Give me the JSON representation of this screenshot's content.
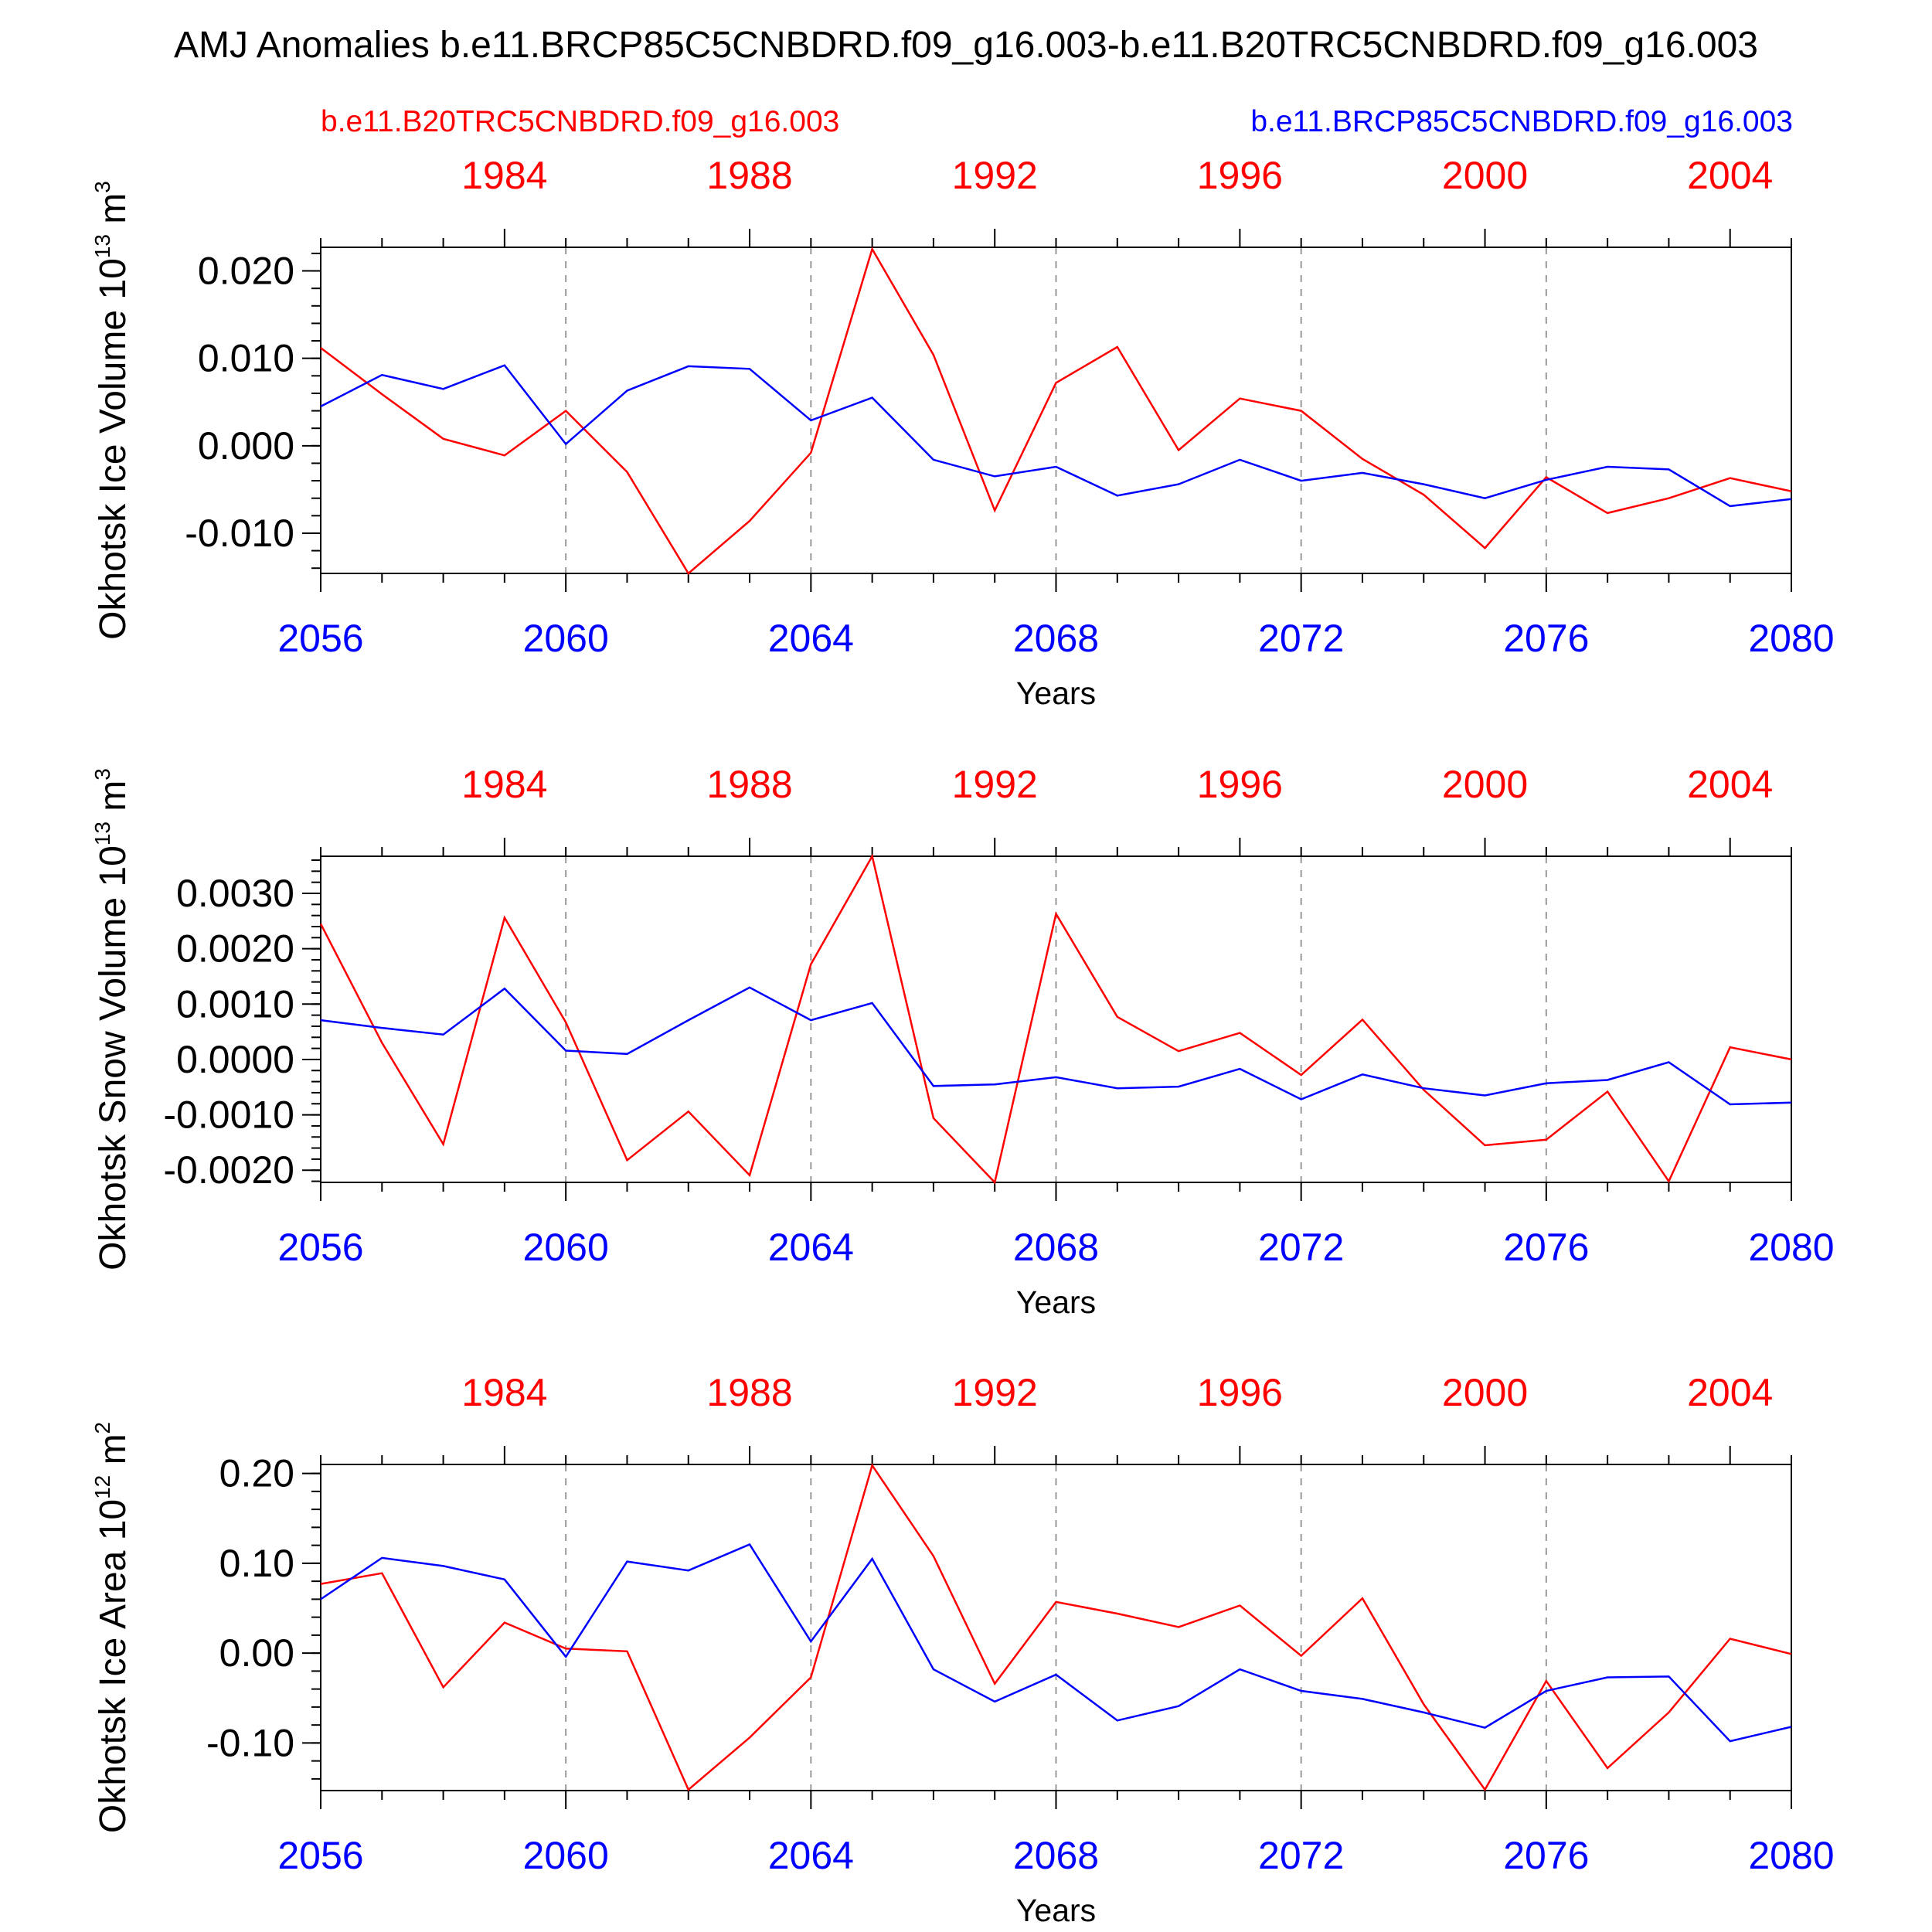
{
  "figure": {
    "title": "AMJ Anomalies b.e11.BRCP85C5CNBDRD.f09_g16.003-b.e11.B20TRC5CNBDRD.f09_g16.003",
    "legend_red": "b.e11.B20TRC5CNBDRD.f09_g16.003",
    "legend_blue": "b.e11.BRCP85C5CNBDRD.f09_g16.003",
    "colors": {
      "red_series": "#ff0000",
      "blue_series": "#0000ff",
      "grid": "#999999"
    }
  },
  "chart_data": [
    {
      "type": "line",
      "ylabel": "Okhotsk Ice Volume",
      "ylabel_unit": "10",
      "ylabel_exp": "13",
      "ylabel_unit_tail": "m",
      "ylabel_unit_exp": "3",
      "xlabel": "Years",
      "ylim": [
        -0.0146,
        0.0227
      ],
      "yticks": [
        0.02,
        0.01,
        0.0,
        -0.01
      ],
      "ytick_labels": [
        "0.020",
        "0.010",
        "0.000",
        "-0.010"
      ],
      "yminor_step": 0.002,
      "x_bottom": [
        2056,
        2057,
        2058,
        2059,
        2060,
        2061,
        2062,
        2063,
        2064,
        2065,
        2066,
        2067,
        2068,
        2069,
        2070,
        2071,
        2072,
        2073,
        2074,
        2075,
        2076,
        2077,
        2078,
        2079,
        2080
      ],
      "bottom_tick_labels": [
        "2056",
        "2060",
        "2064",
        "2068",
        "2072",
        "2076",
        "2080"
      ],
      "top_tick_labels": [
        "1984",
        "1988",
        "1992",
        "1996",
        "2000",
        "2004"
      ],
      "series": [
        {
          "name": "b.e11.B20TRC5CNBDRD.f09_g16.003",
          "color": "#ff0000",
          "values": [
            0.0112,
            0.0059,
            0.0008,
            -0.0011,
            0.004,
            -0.003,
            -0.0146,
            -0.0086,
            -0.0008,
            0.0225,
            0.0104,
            -0.0074,
            0.0072,
            0.0113,
            -0.0005,
            0.0054,
            0.004,
            -0.0015,
            -0.0056,
            -0.0117,
            -0.0036,
            -0.0077,
            -0.006,
            -0.0037,
            -0.0052
          ]
        },
        {
          "name": "b.e11.BRCP85C5CNBDRD.f09_g16.003",
          "color": "#0000ff",
          "values": [
            0.0045,
            0.0081,
            0.0065,
            0.0092,
            0.0002,
            0.0063,
            0.0091,
            0.0088,
            0.0029,
            0.0055,
            -0.0016,
            -0.0035,
            -0.0024,
            -0.0057,
            -0.0044,
            -0.0016,
            -0.004,
            -0.0031,
            -0.0044,
            -0.006,
            -0.0039,
            -0.0024,
            -0.0027,
            -0.0069,
            -0.0061
          ]
        }
      ]
    },
    {
      "type": "line",
      "ylabel": "Okhotsk Snow Volume",
      "ylabel_unit": "10",
      "ylabel_exp": "13",
      "ylabel_unit_tail": "m",
      "ylabel_unit_exp": "3",
      "xlabel": "Years",
      "ylim": [
        -0.00222,
        0.00367
      ],
      "yticks": [
        0.003,
        0.002,
        0.001,
        0.0,
        -0.001,
        -0.002
      ],
      "ytick_labels": [
        "0.0030",
        "0.0020",
        "0.0010",
        "0.0000",
        "-0.0010",
        "-0.0020"
      ],
      "yminor_step": 0.0002,
      "x_bottom": [
        2056,
        2057,
        2058,
        2059,
        2060,
        2061,
        2062,
        2063,
        2064,
        2065,
        2066,
        2067,
        2068,
        2069,
        2070,
        2071,
        2072,
        2073,
        2074,
        2075,
        2076,
        2077,
        2078,
        2079,
        2080
      ],
      "bottom_tick_labels": [
        "2056",
        "2060",
        "2064",
        "2068",
        "2072",
        "2076",
        "2080"
      ],
      "top_tick_labels": [
        "1984",
        "1988",
        "1992",
        "1996",
        "2000",
        "2004"
      ],
      "series": [
        {
          "name": "b.e11.B20TRC5CNBDRD.f09_g16.003",
          "color": "#ff0000",
          "values": [
            0.00245,
            0.0003,
            -0.00153,
            0.00256,
            0.00067,
            -0.00182,
            -0.00094,
            -0.00209,
            0.00172,
            0.00367,
            -0.00106,
            -0.00222,
            0.00263,
            0.00077,
            0.00015,
            0.00048,
            -0.00028,
            0.00072,
            -0.00055,
            -0.00155,
            -0.00145,
            -0.00058,
            -0.0022,
            0.00022,
            0.0
          ]
        },
        {
          "name": "b.e11.BRCP85C5CNBDRD.f09_g16.003",
          "color": "#0000ff",
          "values": [
            0.00071,
            0.00057,
            0.00045,
            0.00128,
            0.00016,
            0.0001,
            0.00071,
            0.0013,
            0.00071,
            0.00102,
            -0.00048,
            -0.00045,
            -0.00032,
            -0.00052,
            -0.00049,
            -0.00017,
            -0.00072,
            -0.00027,
            -0.00052,
            -0.00065,
            -0.00043,
            -0.00037,
            -5e-05,
            -0.00081,
            -0.00078
          ]
        }
      ]
    },
    {
      "type": "line",
      "ylabel": "Okhotsk Ice Area",
      "ylabel_unit": "10",
      "ylabel_exp": "12",
      "ylabel_unit_tail": "m",
      "ylabel_unit_exp": "2",
      "xlabel": "Years",
      "ylim": [
        -0.153,
        0.21
      ],
      "yticks": [
        0.2,
        0.1,
        0.0,
        -0.1
      ],
      "ytick_labels": [
        "0.20",
        "0.10",
        "0.00",
        "-0.10"
      ],
      "yminor_step": 0.02,
      "x_bottom": [
        2056,
        2057,
        2058,
        2059,
        2060,
        2061,
        2062,
        2063,
        2064,
        2065,
        2066,
        2067,
        2068,
        2069,
        2070,
        2071,
        2072,
        2073,
        2074,
        2075,
        2076,
        2077,
        2078,
        2079,
        2080
      ],
      "bottom_tick_labels": [
        "2056",
        "2060",
        "2064",
        "2068",
        "2072",
        "2076",
        "2080"
      ],
      "top_tick_labels": [
        "1984",
        "1988",
        "1992",
        "1996",
        "2000",
        "2004"
      ],
      "series": [
        {
          "name": "b.e11.B20TRC5CNBDRD.f09_g16.003",
          "color": "#ff0000",
          "values": [
            0.077,
            0.089,
            -0.038,
            0.034,
            0.005,
            0.002,
            -0.152,
            -0.094,
            -0.027,
            0.209,
            0.108,
            -0.034,
            0.057,
            0.044,
            0.029,
            0.053,
            -0.003,
            0.061,
            -0.057,
            -0.152,
            -0.031,
            -0.128,
            -0.066,
            0.016,
            -0.001
          ]
        },
        {
          "name": "b.e11.BRCP85C5CNBDRD.f09_g16.003",
          "color": "#0000ff",
          "values": [
            0.06,
            0.106,
            0.097,
            0.082,
            -0.004,
            0.102,
            0.092,
            0.121,
            0.013,
            0.105,
            -0.018,
            -0.054,
            -0.024,
            -0.075,
            -0.059,
            -0.018,
            -0.042,
            -0.051,
            -0.066,
            -0.083,
            -0.042,
            -0.027,
            -0.026,
            -0.098,
            -0.082
          ]
        }
      ]
    }
  ]
}
